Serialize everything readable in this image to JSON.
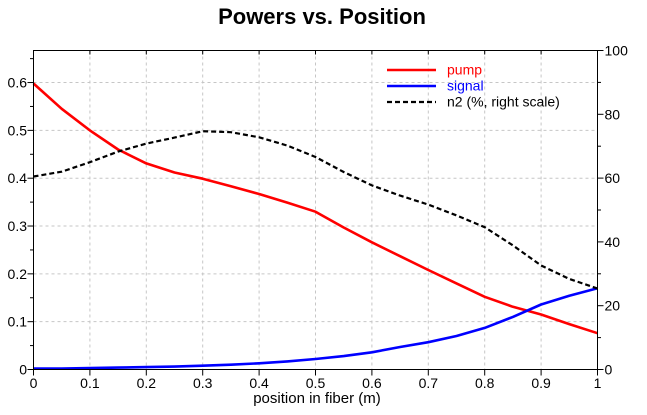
{
  "chart_data": {
    "type": "line",
    "title": "Powers vs. Position",
    "xlabel": "position in fiber (m)",
    "x": [
      0,
      0.05,
      0.1,
      0.15,
      0.2,
      0.25,
      0.3,
      0.35,
      0.4,
      0.45,
      0.5,
      0.55,
      0.6,
      0.65,
      0.7,
      0.75,
      0.8,
      0.85,
      0.9,
      0.95,
      1
    ],
    "series": [
      {
        "name": "pump",
        "axis": "left",
        "color": "#ff0000",
        "style": "solid",
        "values": [
          0.598,
          0.545,
          0.5,
          0.46,
          0.431,
          0.412,
          0.399,
          0.383,
          0.367,
          0.349,
          0.33,
          0.297,
          0.266,
          0.237,
          0.208,
          0.18,
          0.152,
          0.131,
          0.115,
          0.095,
          0.076
        ]
      },
      {
        "name": "signal",
        "axis": "left",
        "color": "#0000ff",
        "style": "solid",
        "values": [
          0.002,
          0.002,
          0.003,
          0.004,
          0.005,
          0.006,
          0.008,
          0.01,
          0.013,
          0.017,
          0.022,
          0.028,
          0.036,
          0.047,
          0.057,
          0.07,
          0.087,
          0.11,
          0.136,
          0.154,
          0.17
        ]
      },
      {
        "name": "n2 (%, right scale)",
        "axis": "right",
        "color": "#000000",
        "style": "dashed",
        "values": [
          60.5,
          62.0,
          65.0,
          68.3,
          70.8,
          72.7,
          74.7,
          74.4,
          72.8,
          70.2,
          66.6,
          61.9,
          57.7,
          54.5,
          51.7,
          48.3,
          44.6,
          38.9,
          32.6,
          28.4,
          25.4
        ]
      }
    ],
    "axes": {
      "x": {
        "min": 0,
        "max": 1,
        "ticks": [
          0,
          0.1,
          0.2,
          0.3,
          0.4,
          0.5,
          0.6,
          0.7,
          0.8,
          0.9,
          1
        ],
        "tick_labels": [
          "0",
          "0.1",
          "0.2",
          "0.3",
          "0.4",
          "0.5",
          "0.6",
          "0.7",
          "0.8",
          "0.9",
          "1"
        ]
      },
      "left": {
        "min": 0,
        "max": 0.667,
        "ticks": [
          0,
          0.1,
          0.2,
          0.3,
          0.4,
          0.5,
          0.6
        ],
        "tick_labels": [
          "0",
          "0.1",
          "0.2",
          "0.3",
          "0.4",
          "0.5",
          "0.6"
        ],
        "minor_ticks": [
          0.05,
          0.15,
          0.25,
          0.35,
          0.45,
          0.55,
          0.65
        ]
      },
      "right": {
        "min": 0,
        "max": 100,
        "ticks": [
          0,
          20,
          40,
          60,
          80,
          100
        ],
        "tick_labels": [
          "0",
          "20",
          "40",
          "60",
          "80",
          "100"
        ],
        "minor_ticks": [
          10,
          30,
          50,
          70,
          90
        ]
      }
    },
    "grid": {
      "color": "#c6c6c6",
      "dash": "3,3",
      "vertical_at": [
        0.1,
        0.2,
        0.3,
        0.4,
        0.5,
        0.6,
        0.7,
        0.8,
        0.9
      ],
      "horizontal_at_left": [
        0.1,
        0.2,
        0.3,
        0.4,
        0.5,
        0.6
      ]
    },
    "legend": {
      "position": "top-right-inside"
    },
    "colors": {
      "axis": "#000000",
      "background": "#ffffff"
    }
  }
}
